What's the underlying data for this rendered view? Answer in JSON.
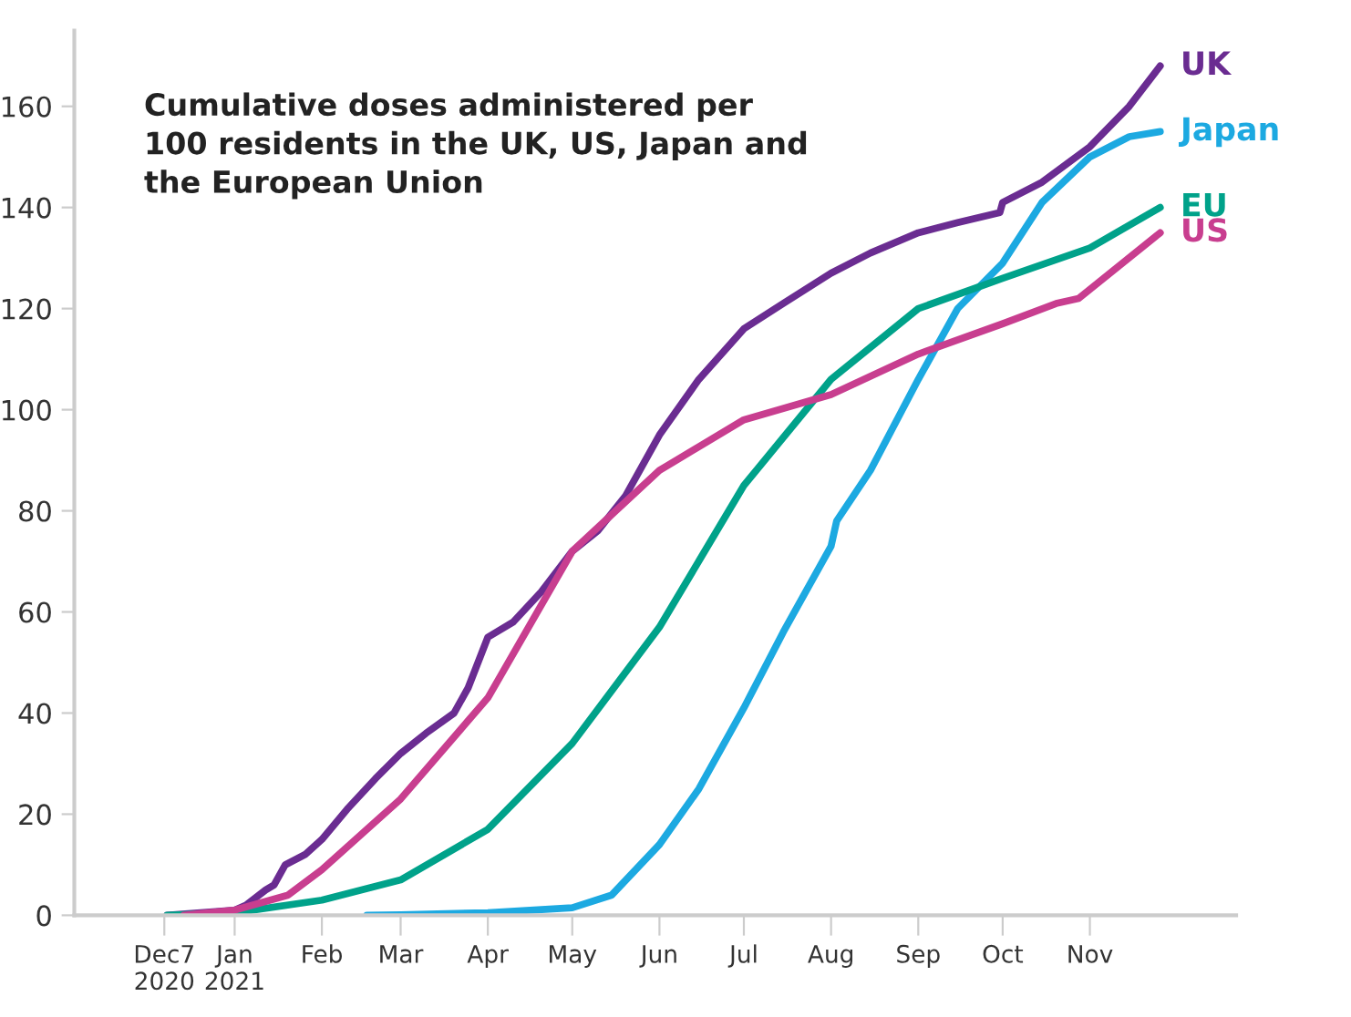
{
  "chart_data": {
    "type": "line",
    "title": "Cumulative doses administered per\n100 residents in the UK, US, Japan and\nthe European Union",
    "xlim": [
      "2020-11-05",
      "2021-12-23"
    ],
    "ylim": [
      0,
      175
    ],
    "xticks": [
      {
        "value": "2020-12-07",
        "label": "Dec7\n2020"
      },
      {
        "value": "2021-01-01",
        "label": "Jan\n2021"
      },
      {
        "value": "2021-02-01",
        "label": "Feb"
      },
      {
        "value": "2021-03-01",
        "label": "Mar"
      },
      {
        "value": "2021-04-01",
        "label": "Apr"
      },
      {
        "value": "2021-05-01",
        "label": "May"
      },
      {
        "value": "2021-06-01",
        "label": "Jun"
      },
      {
        "value": "2021-07-01",
        "label": "Jul"
      },
      {
        "value": "2021-08-01",
        "label": "Aug"
      },
      {
        "value": "2021-09-01",
        "label": "Sep"
      },
      {
        "value": "2021-10-01",
        "label": "Oct"
      },
      {
        "value": "2021-11-01",
        "label": "Nov"
      }
    ],
    "yticks": [
      0,
      20,
      40,
      60,
      80,
      100,
      120,
      140,
      160
    ],
    "grid": false,
    "legend": false,
    "marker": "none",
    "line_style": "solid",
    "series": [
      {
        "name": "UK",
        "color": "#6a2c91",
        "x": [
          "2020-12-08",
          "2021-01-01",
          "2021-01-05",
          "2021-01-12",
          "2021-01-15",
          "2021-01-19",
          "2021-01-26",
          "2021-02-01",
          "2021-02-10",
          "2021-02-20",
          "2021-03-01",
          "2021-03-10",
          "2021-03-20",
          "2021-03-25",
          "2021-04-01",
          "2021-04-10",
          "2021-04-20",
          "2021-05-01",
          "2021-05-10",
          "2021-05-20",
          "2021-06-01",
          "2021-06-15",
          "2021-07-01",
          "2021-07-15",
          "2021-08-01",
          "2021-08-15",
          "2021-09-01",
          "2021-09-15",
          "2021-09-30",
          "2021-10-01",
          "2021-10-15",
          "2021-11-01",
          "2021-11-15",
          "2021-11-26"
        ],
        "values": [
          0,
          1,
          2,
          5,
          6,
          10,
          12,
          15,
          21,
          27,
          32,
          36,
          40,
          45,
          55,
          58,
          64,
          72,
          76,
          83,
          95,
          106,
          116,
          121,
          127,
          131,
          135,
          137,
          139,
          141,
          145,
          152,
          160,
          168
        ]
      },
      {
        "name": "Japan",
        "color": "#1ca9e1",
        "x": [
          "2021-02-17",
          "2021-03-01",
          "2021-04-01",
          "2021-05-01",
          "2021-05-15",
          "2021-06-01",
          "2021-06-15",
          "2021-07-01",
          "2021-07-15",
          "2021-08-01",
          "2021-08-03",
          "2021-08-15",
          "2021-09-01",
          "2021-09-15",
          "2021-10-01",
          "2021-10-15",
          "2021-11-01",
          "2021-11-15",
          "2021-11-26"
        ],
        "values": [
          0,
          0.1,
          0.5,
          1.5,
          4,
          14,
          25,
          41,
          56,
          73,
          78,
          88,
          106,
          120,
          129,
          141,
          150,
          154,
          155
        ]
      },
      {
        "name": "EU",
        "color": "#00a28a",
        "x": [
          "2020-12-08",
          "2021-01-01",
          "2021-02-01",
          "2021-03-01",
          "2021-04-01",
          "2021-05-01",
          "2021-06-01",
          "2021-07-01",
          "2021-08-01",
          "2021-09-01",
          "2021-10-01",
          "2021-11-01",
          "2021-11-26"
        ],
        "values": [
          0,
          0.5,
          3,
          7,
          17,
          34,
          57,
          85,
          106,
          120,
          126,
          132,
          140
        ]
      },
      {
        "name": "US",
        "color": "#c83e8f",
        "x": [
          "2020-12-14",
          "2021-01-01",
          "2021-01-20",
          "2021-02-01",
          "2021-03-01",
          "2021-04-01",
          "2021-05-01",
          "2021-06-01",
          "2021-07-01",
          "2021-08-01",
          "2021-09-01",
          "2021-10-01",
          "2021-10-20",
          "2021-10-28",
          "2021-11-26"
        ],
        "values": [
          0,
          1,
          4,
          9,
          23,
          43,
          72,
          88,
          98,
          103,
          111,
          117,
          121,
          122,
          135
        ]
      }
    ]
  }
}
